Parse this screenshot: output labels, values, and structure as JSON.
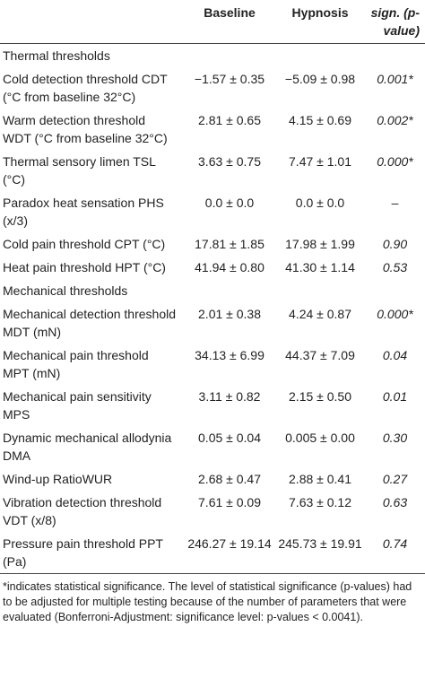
{
  "table": {
    "header": [
      "Baseline",
      "Hypnosis",
      "sign. (p-value)"
    ],
    "rows": [
      [
        "Thermal thresholds"
      ],
      [
        "Cold detection threshold CDT (°C from baseline 32°C)",
        "−1.57 ± 0.35",
        "−5.09 ± 0.98",
        "0.001*"
      ],
      [
        "Warm detection threshold WDT (°C from baseline 32°C)",
        "2.81 ± 0.65",
        "4.15 ± 0.69",
        "0.002*"
      ],
      [
        "Thermal sensory limen TSL (°C)",
        "3.63 ± 0.75",
        "7.47 ± 1.01",
        "0.000*"
      ],
      [
        "Paradox heat sensation PHS (x/3)",
        "0.0 ± 0.0",
        "0.0 ± 0.0",
        "–"
      ],
      [
        "Cold pain threshold CPT (°C)",
        "17.81 ± 1.85",
        "17.98 ± 1.99",
        "0.90"
      ],
      [
        "Heat pain threshold HPT (°C)",
        "41.94 ± 0.80",
        "41.30 ± 1.14",
        "0.53"
      ],
      [
        "Mechanical thresholds"
      ],
      [
        "Mechanical detection threshold MDT (mN)",
        "2.01 ± 0.38",
        "4.24 ± 0.87",
        "0.000*"
      ],
      [
        "Mechanical pain threshold MPT (mN)",
        "34.13 ± 6.99",
        "44.37 ± 7.09",
        "0.04"
      ],
      [
        "Mechanical pain sensitivity MPS",
        "3.11 ± 0.82",
        "2.15 ± 0.50",
        "0.01"
      ],
      [
        "Dynamic mechanical allodynia DMA",
        "0.05 ± 0.04",
        "0.005 ± 0.00",
        "0.30"
      ],
      [
        "Wind-up RatioWUR",
        "2.68 ± 0.47",
        "2.88 ± 0.41",
        "0.27"
      ],
      [
        "Vibration detection threshold VDT (x/8)",
        "7.61 ± 0.09",
        "7.63 ± 0.12",
        "0.63"
      ],
      [
        "Pressure pain threshold PPT (Pa)",
        "246.27 ± 19.14",
        "245.73 ± 19.91",
        "0.74"
      ]
    ],
    "footnote": "*indicates statistical significance. The level of statistical significance (p-values) had to be adjusted for multiple testing because of the number of parameters that were evaluated (Bonferroni-Adjustment: significance level: p-values < 0.0041)."
  }
}
